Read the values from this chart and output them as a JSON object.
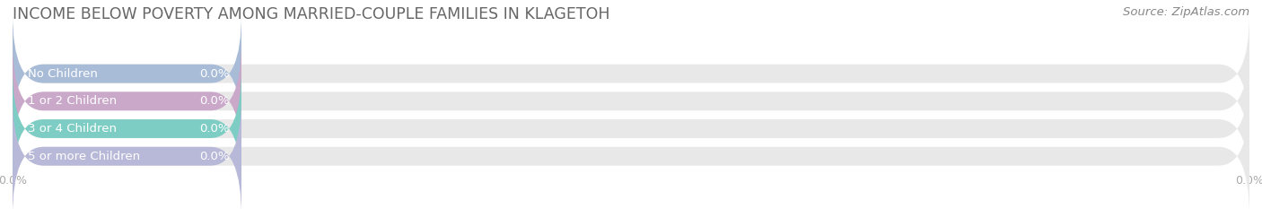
{
  "title": "INCOME BELOW POVERTY AMONG MARRIED-COUPLE FAMILIES IN KLAGETOH",
  "source": "Source: ZipAtlas.com",
  "categories": [
    "No Children",
    "1 or 2 Children",
    "3 or 4 Children",
    "5 or more Children"
  ],
  "values": [
    0.0,
    0.0,
    0.0,
    0.0
  ],
  "bar_colors": [
    "#a8bcd8",
    "#c9a8c9",
    "#7ecdc4",
    "#b8b8d8"
  ],
  "background_color": "#ffffff",
  "bar_bg_color": "#e8e8e8",
  "xlim_max": 100,
  "colored_bar_pct": 18.5,
  "title_fontsize": 12.5,
  "source_fontsize": 9.5,
  "label_fontsize": 9.5,
  "value_fontsize": 9.5,
  "figsize": [
    14.06,
    2.33
  ],
  "dpi": 100,
  "bar_height": 0.68,
  "title_color": "#666666",
  "source_color": "#888888",
  "label_color": "#ffffff",
  "tick_color": "#aaaaaa",
  "grid_color": "#cccccc"
}
